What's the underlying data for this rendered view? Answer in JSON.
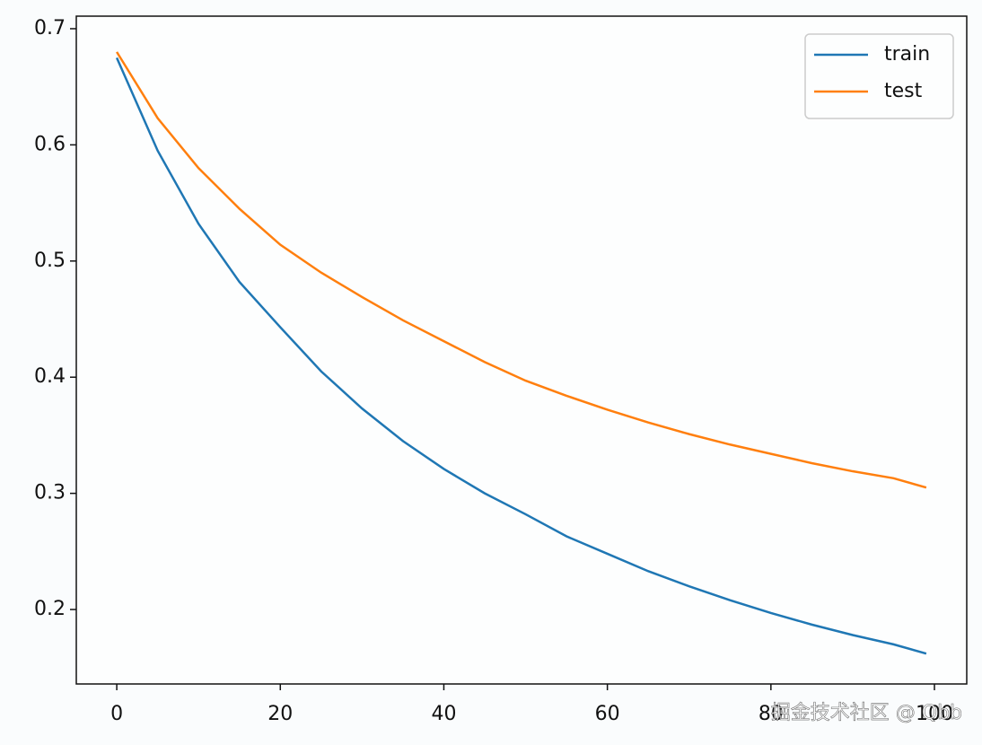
{
  "chart_data": {
    "type": "line",
    "x": [
      0,
      5,
      10,
      15,
      20,
      25,
      30,
      35,
      40,
      45,
      50,
      55,
      60,
      65,
      70,
      75,
      80,
      85,
      90,
      95,
      99
    ],
    "series": [
      {
        "name": "train",
        "color": "#1f77b4",
        "values": [
          0.675,
          0.595,
          0.532,
          0.482,
          0.443,
          0.405,
          0.373,
          0.345,
          0.321,
          0.3,
          0.282,
          0.263,
          0.248,
          0.233,
          0.22,
          0.208,
          0.197,
          0.187,
          0.178,
          0.17,
          0.162
        ]
      },
      {
        "name": "test",
        "color": "#ff7f0e",
        "values": [
          0.68,
          0.623,
          0.58,
          0.545,
          0.514,
          0.49,
          0.469,
          0.449,
          0.431,
          0.413,
          0.397,
          0.384,
          0.372,
          0.361,
          0.351,
          0.342,
          0.334,
          0.326,
          0.319,
          0.313,
          0.305
        ]
      }
    ],
    "xlim": [
      -4.95,
      103.95
    ],
    "xticks": [
      0,
      20,
      40,
      60,
      80,
      100
    ],
    "ylim": [
      0.1359,
      0.7108
    ],
    "yticks": [
      0.2,
      0.3,
      0.4,
      0.5,
      0.6,
      0.7
    ],
    "legend": "upper right",
    "watermark": "掘金技术社区 @ Qbb"
  }
}
